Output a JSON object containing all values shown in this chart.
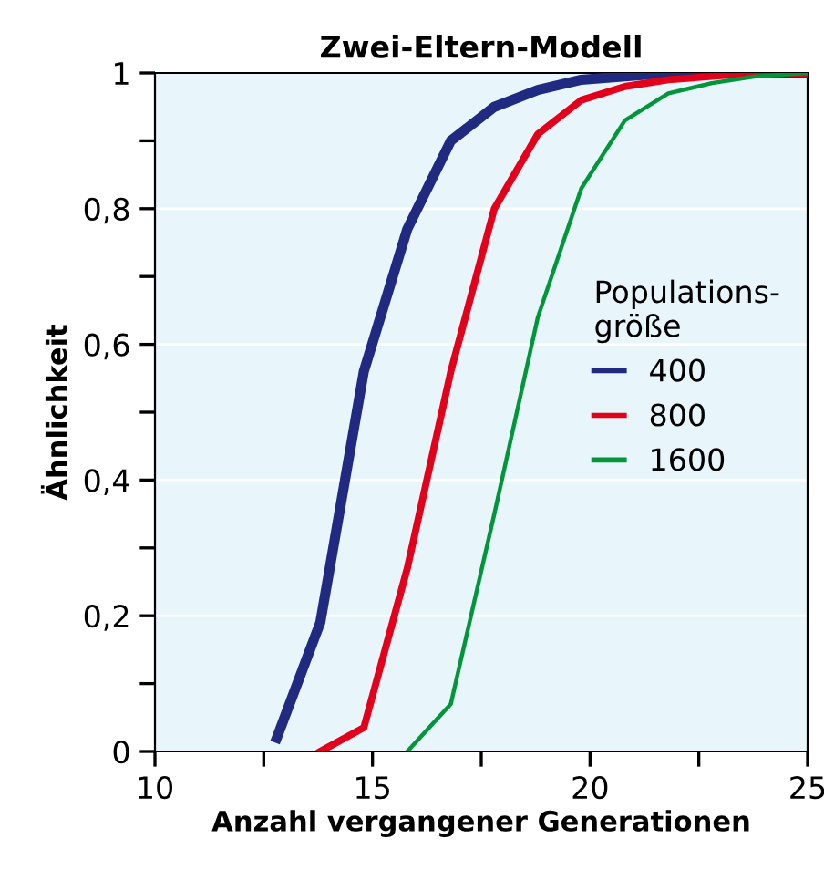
{
  "chart_data": {
    "type": "line",
    "title": "Zwei-Eltern-Modell",
    "xlabel": "Anzahl vergangener Generationen",
    "ylabel": "Ähnlichkeit",
    "legend_title": "Populations-\ngröße",
    "legend": "right",
    "xlim": [
      10,
      25
    ],
    "ylim": [
      0,
      1
    ],
    "xticks": [
      10,
      {
        "value": 12.5,
        "label": null
      },
      15,
      {
        "value": 17.5,
        "label": null
      },
      20,
      {
        "value": 22.5,
        "label": null
      },
      25
    ],
    "yticks": [
      {
        "value": 0,
        "label": "0"
      },
      {
        "value": 0.1,
        "label": null
      },
      {
        "value": 0.2,
        "label": "0,2"
      },
      {
        "value": 0.3,
        "label": null
      },
      {
        "value": 0.4,
        "label": "0,4"
      },
      {
        "value": 0.5,
        "label": null
      },
      {
        "value": 0.6,
        "label": "0,6"
      },
      {
        "value": 0.7,
        "label": null
      },
      {
        "value": 0.8,
        "label": "0,8"
      },
      {
        "value": 0.9,
        "label": null
      },
      {
        "value": 1,
        "label": "1"
      }
    ],
    "grid": "y",
    "marker": "none",
    "line_style": "solid",
    "series": [
      {
        "name": "400",
        "color": "#1f2a80",
        "x": [
          12.8,
          13.8,
          14.8,
          15.8,
          16.8,
          17.8,
          18.8,
          19.8,
          20.8,
          21.8,
          22.8,
          23.8,
          25
        ],
        "values": [
          0.02,
          0.19,
          0.56,
          0.77,
          0.9,
          0.95,
          0.975,
          0.99,
          0.995,
          1,
          1,
          1,
          1
        ]
      },
      {
        "name": "800",
        "color": "#e3001b",
        "x": [
          13.8,
          14.8,
          15.8,
          16.8,
          17.8,
          18.8,
          19.8,
          20.8,
          21.8,
          22.8,
          23.8,
          25
        ],
        "values": [
          0,
          0.035,
          0.27,
          0.56,
          0.8,
          0.91,
          0.96,
          0.98,
          0.99,
          0.995,
          1,
          1
        ]
      },
      {
        "name": "1600",
        "color": "#009639",
        "x": [
          15.8,
          16.8,
          17.8,
          18.8,
          19.8,
          20.8,
          21.8,
          22.8,
          23.8,
          25
        ],
        "values": [
          0,
          0.07,
          0.35,
          0.64,
          0.83,
          0.93,
          0.97,
          0.985,
          0.995,
          1
        ]
      }
    ]
  }
}
